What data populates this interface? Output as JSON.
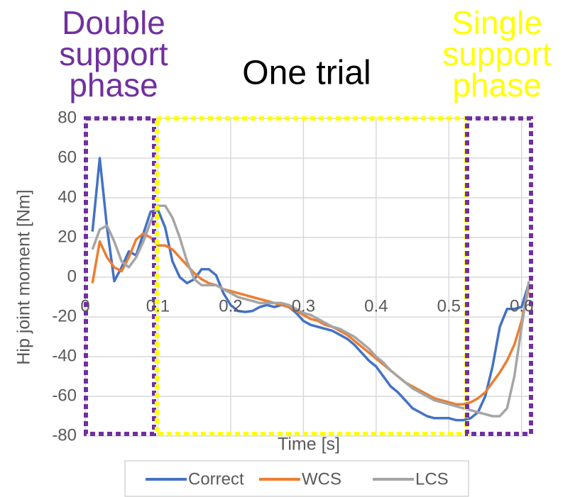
{
  "chart_data": {
    "type": "line",
    "title": "One trial",
    "annotations": [
      {
        "lines": [
          "Double",
          "support",
          "phase"
        ],
        "color": "#7030a0"
      },
      {
        "lines": [
          "Single",
          "support",
          "phase"
        ],
        "color": "#ffff00"
      }
    ],
    "x_label": "Time [s]",
    "y_label": "Hip joint moment [Nm]",
    "x": [
      0.01,
      0.02,
      0.03,
      0.04,
      0.05,
      0.06,
      0.07,
      0.08,
      0.09,
      0.1,
      0.11,
      0.12,
      0.13,
      0.14,
      0.15,
      0.16,
      0.17,
      0.18,
      0.19,
      0.2,
      0.21,
      0.22,
      0.23,
      0.24,
      0.25,
      0.26,
      0.27,
      0.28,
      0.29,
      0.3,
      0.31,
      0.32,
      0.33,
      0.34,
      0.35,
      0.36,
      0.37,
      0.38,
      0.39,
      0.4,
      0.41,
      0.42,
      0.43,
      0.44,
      0.45,
      0.46,
      0.47,
      0.48,
      0.49,
      0.5,
      0.51,
      0.52,
      0.53,
      0.54,
      0.55,
      0.56,
      0.57,
      0.58,
      0.59,
      0.6,
      0.61
    ],
    "series": [
      {
        "name": "Correct",
        "color": "#4472c4",
        "values": [
          23,
          60,
          25,
          -2,
          5,
          13,
          11,
          22,
          33,
          34,
          25,
          8,
          0,
          -3,
          -1,
          4,
          4,
          1,
          -8,
          -14,
          -17,
          -17.5,
          -17,
          -15,
          -14,
          -15,
          -14,
          -15,
          -18,
          -22,
          -24,
          -25,
          -26,
          -27,
          -29,
          -31,
          -34,
          -38,
          -42,
          -45,
          -50,
          -55,
          -58,
          -62,
          -66,
          -68,
          -70,
          -71,
          -71,
          -71,
          -72,
          -72,
          -71,
          -68,
          -60,
          -45,
          -25,
          -16,
          -16,
          -15,
          -3
        ]
      },
      {
        "name": "WCS",
        "color": "#ed7d31",
        "values": [
          -3,
          18,
          10,
          5,
          3,
          10,
          19,
          22,
          20,
          16,
          16,
          14,
          10,
          6,
          2,
          -1,
          -3,
          -4,
          -6,
          -7,
          -8,
          -9,
          -10,
          -11,
          -12,
          -13,
          -14,
          -15,
          -17,
          -19,
          -21,
          -22,
          -24,
          -25,
          -27,
          -29,
          -32,
          -35,
          -38,
          -41,
          -44,
          -47,
          -50,
          -53,
          -55,
          -57,
          -59,
          -61,
          -62,
          -63,
          -64,
          -64,
          -63,
          -61,
          -58,
          -53,
          -48,
          -42,
          -34,
          -22,
          -5
        ]
      },
      {
        "name": "LCS",
        "color": "#a5a5a5",
        "values": [
          14,
          24,
          26,
          18,
          8,
          5,
          10,
          18,
          28,
          36,
          36,
          30,
          20,
          8,
          -1,
          -4,
          -4,
          -4,
          -6,
          -8,
          -10,
          -11,
          -12,
          -13,
          -13,
          -13,
          -13,
          -14,
          -16,
          -18,
          -19,
          -21,
          -23,
          -25,
          -26,
          -28,
          -30,
          -33,
          -36,
          -40,
          -43,
          -47,
          -50,
          -53,
          -56,
          -58,
          -60,
          -62,
          -63,
          -64,
          -65,
          -66,
          -67,
          -68,
          -69,
          -70,
          -70,
          -66,
          -50,
          -25,
          -2
        ]
      }
    ],
    "xlim": [
      0,
      0.61
    ],
    "xticks": [
      0,
      0.1,
      0.2,
      0.3,
      0.4,
      0.5,
      0.6
    ],
    "ylim": [
      -80,
      80
    ],
    "yticks": [
      -80,
      -60,
      -40,
      -20,
      0,
      20,
      40,
      60,
      80
    ],
    "grid": true
  }
}
